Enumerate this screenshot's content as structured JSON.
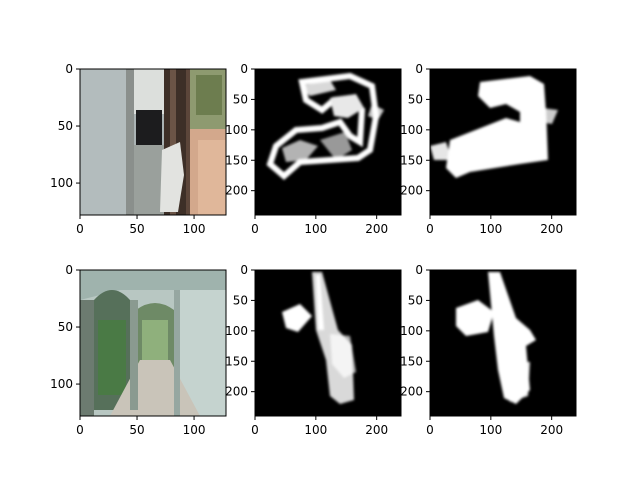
{
  "chart_data": [
    {
      "type": "image",
      "name": "row1-rgb-frame",
      "xticks": [
        0,
        50,
        100
      ],
      "yticks": [
        0,
        50,
        100
      ],
      "xlim": [
        0,
        128
      ],
      "ylim": [
        128,
        0
      ],
      "palette": {
        "wall": "#aeb6b6",
        "floor": "#c9a98f",
        "door": "#3a302a",
        "garden": "#7f8a5d",
        "sky": "#d9dcd6"
      }
    },
    {
      "type": "image",
      "name": "row1-mask-a",
      "xticks": [
        0,
        100,
        200
      ],
      "yticks": [
        0,
        50,
        100,
        150,
        200
      ],
      "xlim": [
        0,
        240
      ],
      "ylim": [
        240,
        0
      ]
    },
    {
      "type": "image",
      "name": "row1-mask-b",
      "xticks": [
        0,
        100,
        200
      ],
      "yticks": [
        0,
        50,
        100,
        150,
        200
      ],
      "xlim": [
        0,
        240
      ],
      "ylim": [
        240,
        0
      ]
    },
    {
      "type": "image",
      "name": "row2-rgb-frame",
      "xticks": [
        0,
        50,
        100
      ],
      "yticks": [
        0,
        50,
        100
      ],
      "xlim": [
        0,
        128
      ],
      "ylim": [
        128,
        0
      ],
      "palette": {
        "wall": "#b9c9c4",
        "arch": "#5d6b5f",
        "plants": "#4f7a4a",
        "floor": "#c8c3b9",
        "light": "#e3e7e2"
      }
    },
    {
      "type": "image",
      "name": "row2-mask-a",
      "xticks": [
        0,
        100,
        200
      ],
      "yticks": [
        0,
        50,
        100,
        150,
        200
      ],
      "xlim": [
        0,
        240
      ],
      "ylim": [
        240,
        0
      ]
    },
    {
      "type": "image",
      "name": "row2-mask-b",
      "xticks": [
        0,
        100,
        200
      ],
      "yticks": [
        0,
        50,
        100,
        150,
        200
      ],
      "xlim": [
        0,
        240
      ],
      "ylim": [
        240,
        0
      ]
    }
  ]
}
